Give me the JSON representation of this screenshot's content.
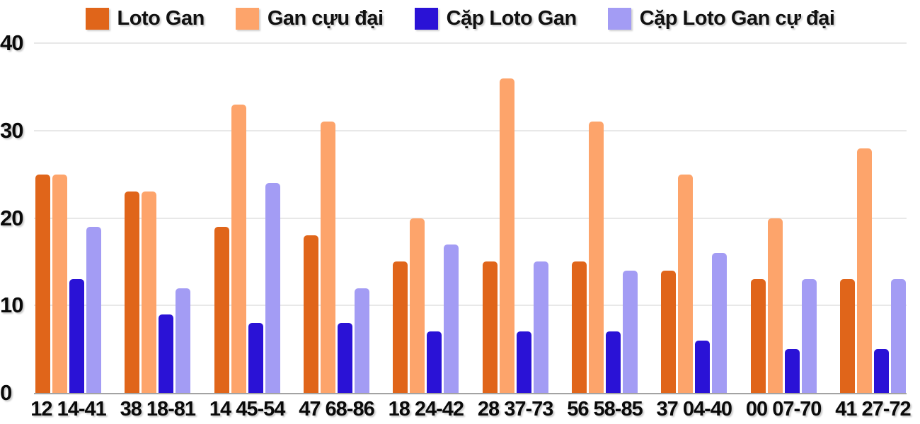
{
  "chart_data": {
    "type": "bar",
    "title": "",
    "xlabel": "",
    "ylabel": "",
    "ylim": [
      0,
      40
    ],
    "yticks": [
      "0",
      "10",
      "20",
      "30",
      "40"
    ],
    "grid": true,
    "legend_position": "top",
    "background_color": "#ffffff",
    "gridline_color": "#e8e8e8",
    "axis_line_color": "#a3a3a3",
    "categories": [
      "12 14-41",
      "38 18-81",
      "14 45-54",
      "47 68-86",
      "18 24-42",
      "28 37-73",
      "56 58-85",
      "37 04-40",
      "00 07-70",
      "41 27-72"
    ],
    "series": [
      {
        "name": "Loto Gan",
        "color": "#e0651a",
        "values": [
          25,
          23,
          19,
          18,
          15,
          15,
          15,
          14,
          13,
          13
        ]
      },
      {
        "name": "Gan cựu đại",
        "color": "#fda46b",
        "values": [
          25,
          23,
          33,
          31,
          20,
          36,
          31,
          25,
          20,
          28
        ]
      },
      {
        "name": "Cặp Loto Gan",
        "color": "#2a12d6",
        "values": [
          13,
          9,
          8,
          8,
          7,
          7,
          7,
          6,
          5,
          5
        ]
      },
      {
        "name": "Cặp Loto Gan cự đại",
        "color": "#a39cf4",
        "values": [
          19,
          12,
          24,
          12,
          17,
          15,
          14,
          16,
          13,
          13
        ]
      }
    ]
  }
}
